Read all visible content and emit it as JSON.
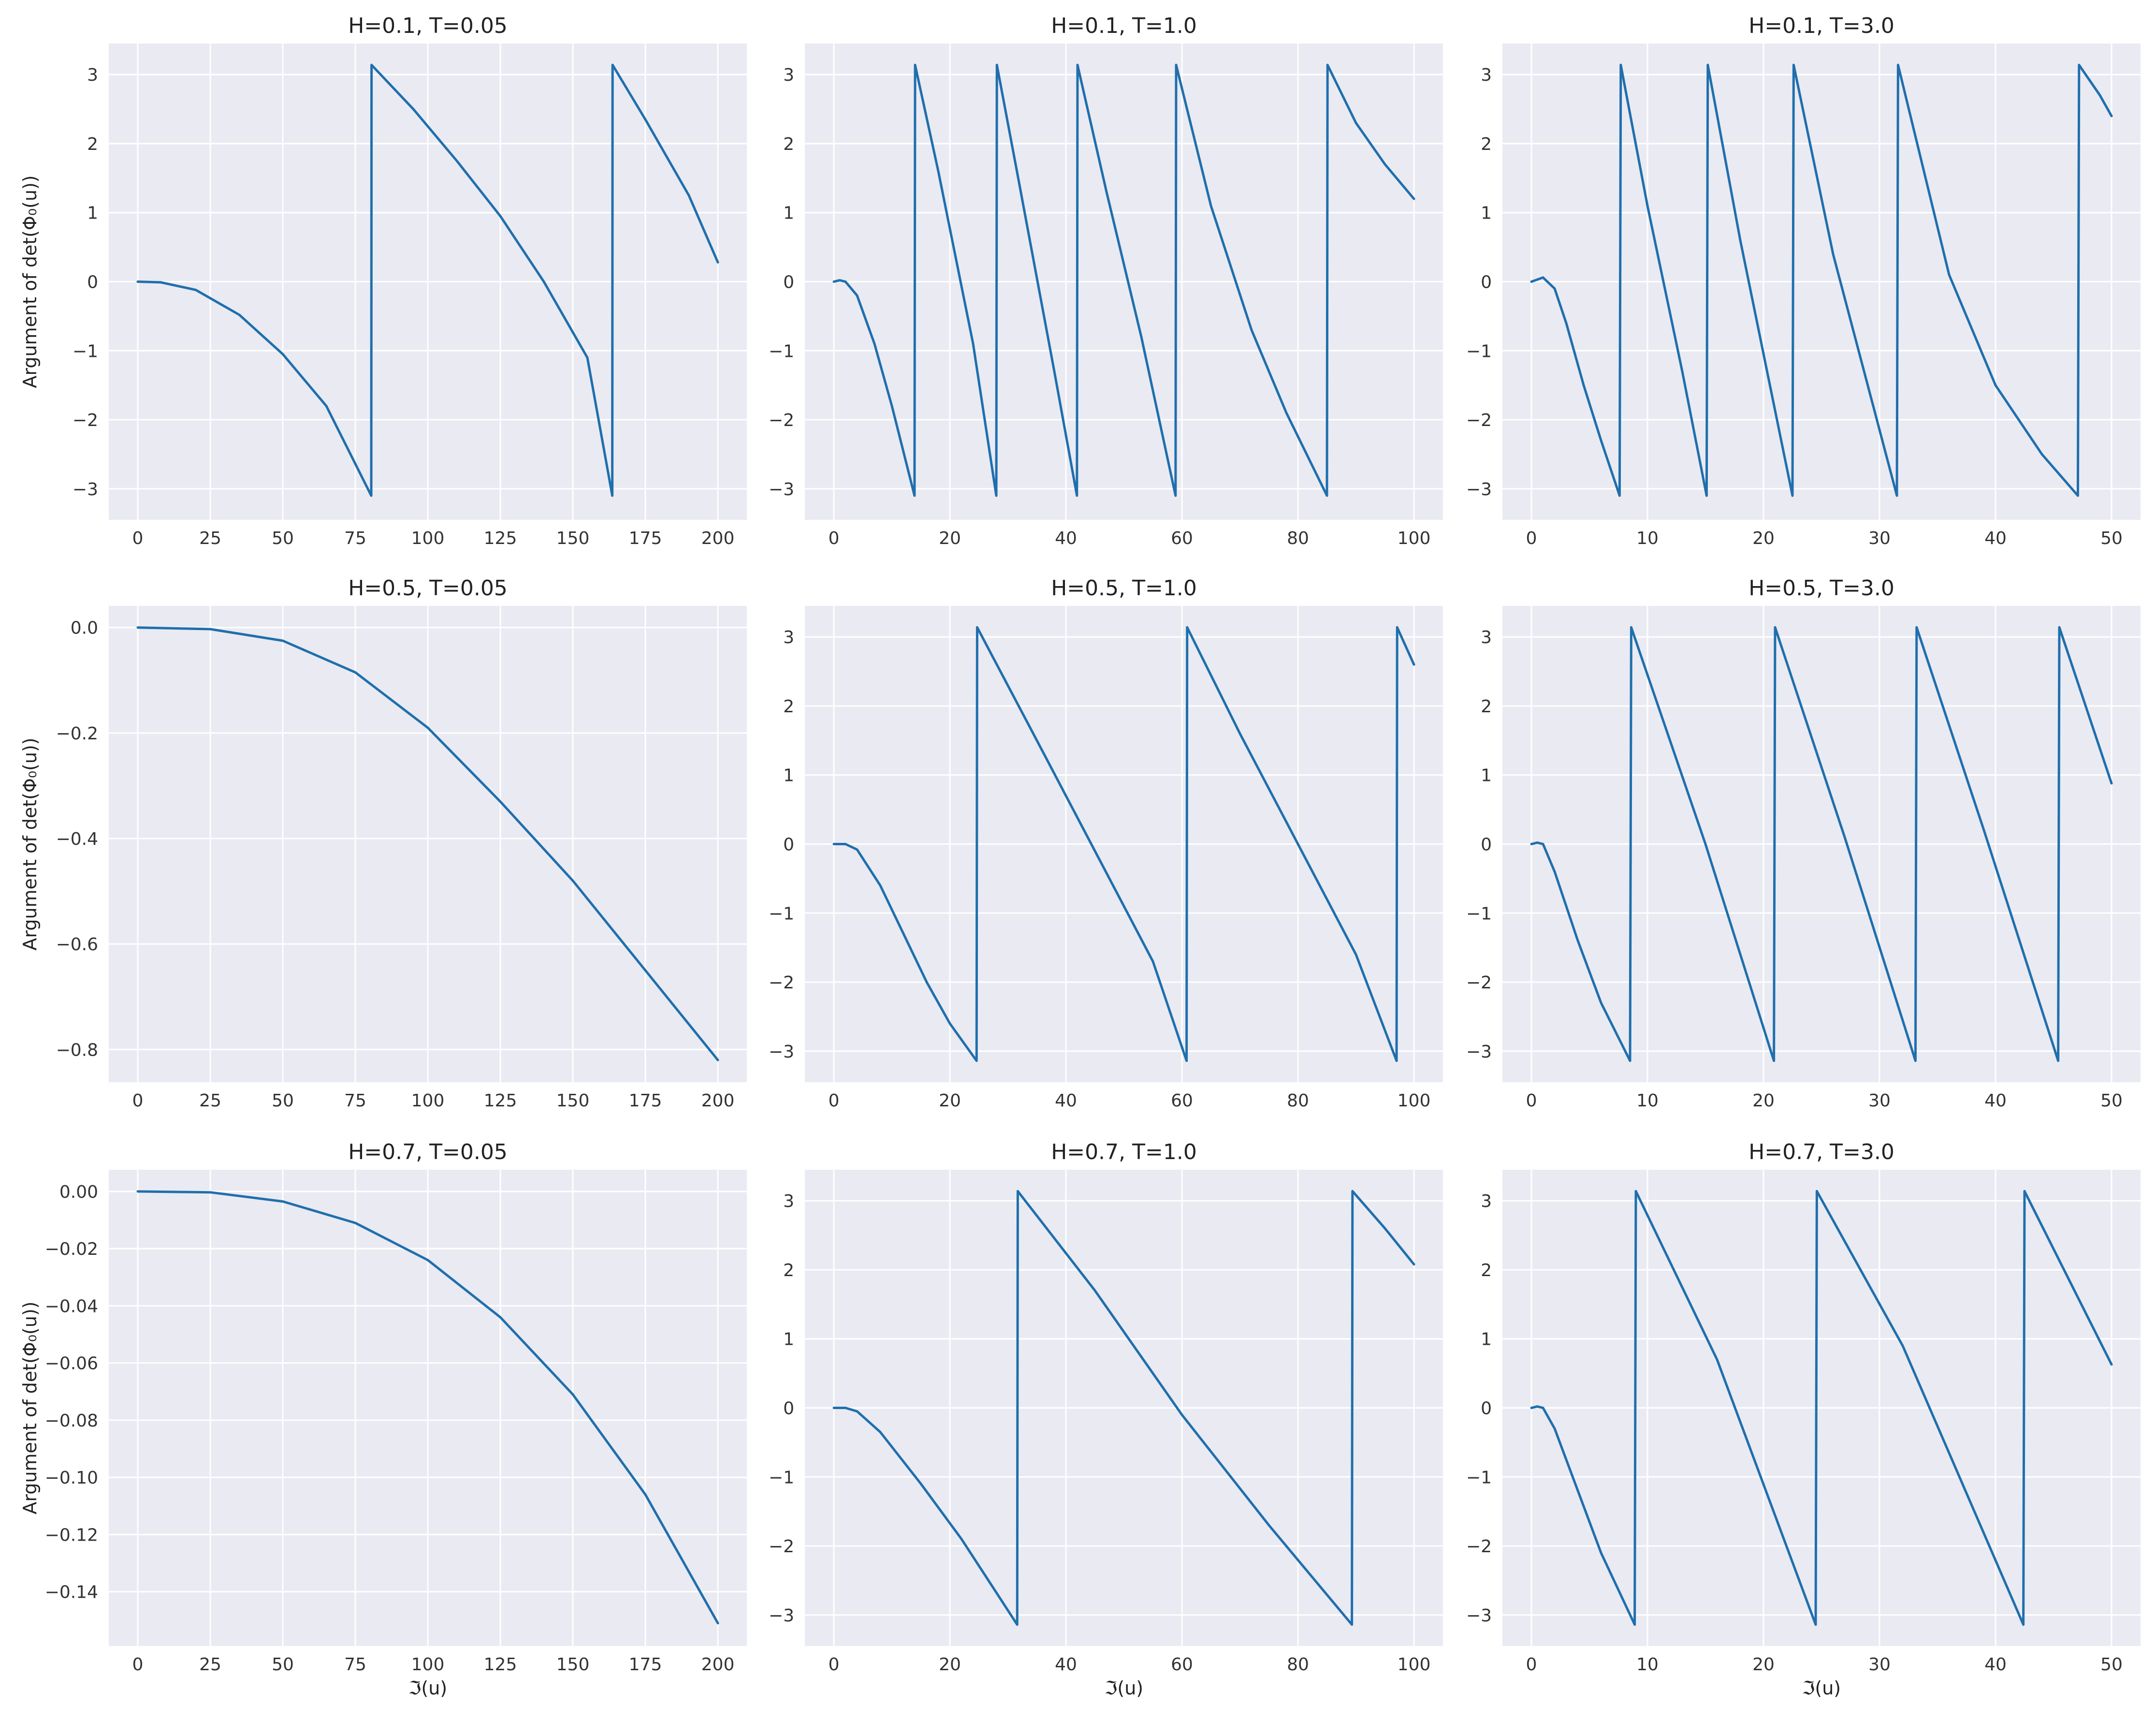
{
  "figure": {
    "background": "#ffffff",
    "axes_background": "#eaeaf2",
    "grid_color": "#ffffff",
    "line_color": "#1f6fad"
  },
  "chart_data": [
    {
      "type": "line",
      "title": "H=0.1, T=0.05",
      "xlabel": "",
      "ylabel": "Argument of det(Φ₀(u))",
      "xlim": [
        -10,
        210
      ],
      "ylim": [
        -3.45,
        3.45
      ],
      "grid": true,
      "xticks": [
        0,
        25,
        50,
        75,
        100,
        125,
        150,
        175,
        200
      ],
      "xtick_labels": [
        "0",
        "25",
        "50",
        "75",
        "100",
        "125",
        "150",
        "175",
        "200"
      ],
      "yticks": [
        3,
        2,
        1,
        0,
        -1,
        -2,
        -3
      ],
      "ytick_labels": [
        "3",
        "2",
        "1",
        "0",
        "−1",
        "−2",
        "−3"
      ],
      "series": [
        {
          "x": [
            0,
            8,
            20,
            35,
            50,
            65,
            80.5,
            80.6,
            95,
            110,
            125,
            140,
            155,
            163.6,
            163.7,
            175,
            190,
            200
          ],
          "y": [
            0,
            -0.01,
            -0.12,
            -0.48,
            -1.05,
            -1.8,
            -3.1,
            3.14,
            2.5,
            1.75,
            0.95,
            0.0,
            -1.1,
            -3.1,
            3.14,
            2.35,
            1.25,
            0.28
          ]
        }
      ]
    },
    {
      "type": "line",
      "title": "H=0.1, T=1.0",
      "xlabel": "",
      "ylabel": "",
      "xlim": [
        -5,
        105
      ],
      "ylim": [
        -3.45,
        3.45
      ],
      "grid": true,
      "xticks": [
        0,
        20,
        40,
        60,
        80,
        100
      ],
      "xtick_labels": [
        "0",
        "20",
        "40",
        "60",
        "80",
        "100"
      ],
      "yticks": [
        3,
        2,
        1,
        0,
        -1,
        -2,
        -3
      ],
      "ytick_labels": [
        "3",
        "2",
        "1",
        "0",
        "−1",
        "−2",
        "−3"
      ],
      "series": [
        {
          "x": [
            0,
            1,
            2,
            4,
            7,
            10,
            13.9,
            14,
            18,
            24,
            28,
            28.1,
            32,
            38,
            41.9,
            42,
            47,
            53,
            58.9,
            59,
            65,
            72,
            78,
            85,
            85.1,
            90,
            95,
            100
          ],
          "y": [
            0,
            0.02,
            0.0,
            -0.2,
            -0.9,
            -1.8,
            -3.1,
            3.14,
            1.6,
            -0.9,
            -3.1,
            3.14,
            1.4,
            -1.3,
            -3.1,
            3.14,
            1.3,
            -0.8,
            -3.1,
            3.14,
            1.1,
            -0.7,
            -1.9,
            -3.1,
            3.14,
            2.3,
            1.7,
            1.2
          ]
        }
      ]
    },
    {
      "type": "line",
      "title": "H=0.1, T=3.0",
      "xlabel": "",
      "ylabel": "",
      "xlim": [
        -2.5,
        52.5
      ],
      "ylim": [
        -3.45,
        3.45
      ],
      "grid": true,
      "xticks": [
        0,
        10,
        20,
        30,
        40,
        50
      ],
      "xtick_labels": [
        "0",
        "10",
        "20",
        "30",
        "40",
        "50"
      ],
      "yticks": [
        3,
        2,
        1,
        0,
        -1,
        -2,
        -3
      ],
      "ytick_labels": [
        "3",
        "2",
        "1",
        "0",
        "−1",
        "−2",
        "−3"
      ],
      "series": [
        {
          "x": [
            0,
            0.5,
            1,
            2,
            3,
            4.5,
            6,
            7.6,
            7.7,
            10,
            13,
            15.1,
            15.2,
            18,
            22.5,
            22.6,
            26,
            31.5,
            31.6,
            36,
            40,
            44,
            47.1,
            47.2,
            49,
            50
          ],
          "y": [
            0,
            0.03,
            0.06,
            -0.1,
            -0.6,
            -1.5,
            -2.3,
            -3.1,
            3.14,
            1.1,
            -1.3,
            -3.1,
            3.14,
            0.6,
            -3.1,
            3.14,
            0.4,
            -3.1,
            3.14,
            0.1,
            -1.5,
            -2.5,
            -3.1,
            3.14,
            2.7,
            2.4
          ]
        }
      ]
    },
    {
      "type": "line",
      "title": "H=0.5, T=0.05",
      "xlabel": "",
      "ylabel": "Argument of det(Φ₀(u))",
      "xlim": [
        -10,
        210
      ],
      "ylim": [
        -0.862,
        0.041
      ],
      "grid": true,
      "xticks": [
        0,
        25,
        50,
        75,
        100,
        125,
        150,
        175,
        200
      ],
      "xtick_labels": [
        "0",
        "25",
        "50",
        "75",
        "100",
        "125",
        "150",
        "175",
        "200"
      ],
      "yticks": [
        0.0,
        -0.2,
        -0.4,
        -0.6,
        -0.8
      ],
      "ytick_labels": [
        "0.0",
        "−0.2",
        "−0.4",
        "−0.6",
        "−0.8"
      ],
      "series": [
        {
          "x": [
            0,
            25,
            50,
            75,
            100,
            125,
            150,
            175,
            200
          ],
          "y": [
            0.0,
            -0.003,
            -0.025,
            -0.085,
            -0.19,
            -0.33,
            -0.48,
            -0.65,
            -0.82
          ]
        }
      ]
    },
    {
      "type": "line",
      "title": "H=0.5, T=1.0",
      "xlabel": "",
      "ylabel": "",
      "xlim": [
        -5,
        105
      ],
      "ylim": [
        -3.45,
        3.45
      ],
      "grid": true,
      "xticks": [
        0,
        20,
        40,
        60,
        80,
        100
      ],
      "xtick_labels": [
        "0",
        "20",
        "40",
        "60",
        "80",
        "100"
      ],
      "yticks": [
        3,
        2,
        1,
        0,
        -1,
        -2,
        -3
      ],
      "ytick_labels": [
        "3",
        "2",
        "1",
        "0",
        "−1",
        "−2",
        "−3"
      ],
      "series": [
        {
          "x": [
            0,
            2,
            4,
            8,
            12,
            16,
            20,
            24.6,
            24.7,
            35,
            45,
            55,
            60.8,
            60.9,
            70,
            80,
            90,
            97,
            97.1,
            100
          ],
          "y": [
            0,
            0.0,
            -0.08,
            -0.6,
            -1.3,
            -2.0,
            -2.6,
            -3.14,
            3.14,
            1.5,
            -0.1,
            -1.7,
            -3.14,
            3.14,
            1.6,
            0.0,
            -1.6,
            -3.14,
            3.14,
            2.6
          ]
        }
      ]
    },
    {
      "type": "line",
      "title": "H=0.5, T=3.0",
      "xlabel": "",
      "ylabel": "",
      "xlim": [
        -2.5,
        52.5
      ],
      "ylim": [
        -3.45,
        3.45
      ],
      "grid": true,
      "xticks": [
        0,
        10,
        20,
        30,
        40,
        50
      ],
      "xtick_labels": [
        "0",
        "10",
        "20",
        "30",
        "40",
        "50"
      ],
      "yticks": [
        3,
        2,
        1,
        0,
        -1,
        -2,
        -3
      ],
      "ytick_labels": [
        "3",
        "2",
        "1",
        "0",
        "−1",
        "−2",
        "−3"
      ],
      "series": [
        {
          "x": [
            0,
            0.5,
            1,
            2,
            4,
            6,
            8.5,
            8.6,
            15,
            20.9,
            21,
            27,
            33.1,
            33.2,
            39,
            45.4,
            45.5,
            50
          ],
          "y": [
            0,
            0.02,
            0.0,
            -0.4,
            -1.4,
            -2.3,
            -3.14,
            3.14,
            0.0,
            -3.14,
            3.14,
            0.1,
            -3.14,
            3.14,
            0.2,
            -3.14,
            3.14,
            0.88
          ]
        }
      ]
    },
    {
      "type": "line",
      "title": "H=0.7, T=0.05",
      "xlabel": "ℑ(u)",
      "ylabel": "Argument of det(Φ₀(u))",
      "xlim": [
        -10,
        210
      ],
      "ylim": [
        -0.159,
        0.0076
      ],
      "grid": true,
      "xticks": [
        0,
        25,
        50,
        75,
        100,
        125,
        150,
        175,
        200
      ],
      "xtick_labels": [
        "0",
        "25",
        "50",
        "75",
        "100",
        "125",
        "150",
        "175",
        "200"
      ],
      "yticks": [
        0.0,
        -0.02,
        -0.04,
        -0.06,
        -0.08,
        -0.1,
        -0.12,
        -0.14
      ],
      "ytick_labels": [
        "0.00",
        "−0.02",
        "−0.04",
        "−0.06",
        "−0.08",
        "−0.10",
        "−0.12",
        "−0.14"
      ],
      "series": [
        {
          "x": [
            0,
            25,
            50,
            75,
            100,
            125,
            150,
            175,
            200
          ],
          "y": [
            0.0,
            -0.0003,
            -0.0035,
            -0.011,
            -0.024,
            -0.044,
            -0.071,
            -0.106,
            -0.151
          ]
        }
      ]
    },
    {
      "type": "line",
      "title": "H=0.7, T=1.0",
      "xlabel": "ℑ(u)",
      "ylabel": "",
      "xlim": [
        -5,
        105
      ],
      "ylim": [
        -3.45,
        3.45
      ],
      "grid": true,
      "xticks": [
        0,
        20,
        40,
        60,
        80,
        100
      ],
      "xtick_labels": [
        "0",
        "20",
        "40",
        "60",
        "80",
        "100"
      ],
      "yticks": [
        3,
        2,
        1,
        0,
        -1,
        -2,
        -3
      ],
      "ytick_labels": [
        "3",
        "2",
        "1",
        "0",
        "−1",
        "−2",
        "−3"
      ],
      "series": [
        {
          "x": [
            0,
            2,
            4,
            8,
            15,
            22,
            31.6,
            31.7,
            45,
            60,
            75,
            89.3,
            89.4,
            95,
            100
          ],
          "y": [
            0,
            0.0,
            -0.05,
            -0.35,
            -1.1,
            -1.9,
            -3.14,
            3.14,
            1.7,
            -0.1,
            -1.7,
            -3.14,
            3.14,
            2.6,
            2.08
          ]
        }
      ]
    },
    {
      "type": "line",
      "title": "H=0.7, T=3.0",
      "xlabel": "ℑ(u)",
      "ylabel": "",
      "xlim": [
        -2.5,
        52.5
      ],
      "ylim": [
        -3.45,
        3.45
      ],
      "grid": true,
      "xticks": [
        0,
        10,
        20,
        30,
        40,
        50
      ],
      "xtick_labels": [
        "0",
        "10",
        "20",
        "30",
        "40",
        "50"
      ],
      "yticks": [
        3,
        2,
        1,
        0,
        -1,
        -2,
        -3
      ],
      "ytick_labels": [
        "3",
        "2",
        "1",
        "0",
        "−1",
        "−2",
        "−3"
      ],
      "series": [
        {
          "x": [
            0,
            0.5,
            1,
            2,
            4,
            6,
            8.9,
            9.0,
            16,
            24.5,
            24.6,
            32,
            42.4,
            42.5,
            50
          ],
          "y": [
            0,
            0.02,
            0.0,
            -0.3,
            -1.2,
            -2.1,
            -3.14,
            3.14,
            0.7,
            -3.14,
            3.14,
            0.9,
            -3.14,
            3.14,
            0.63
          ]
        }
      ]
    }
  ]
}
